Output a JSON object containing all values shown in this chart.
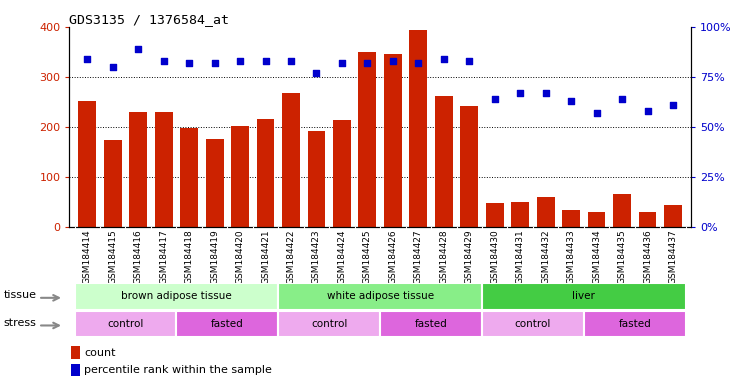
{
  "title": "GDS3135 / 1376584_at",
  "samples": [
    "GSM184414",
    "GSM184415",
    "GSM184416",
    "GSM184417",
    "GSM184418",
    "GSM184419",
    "GSM184420",
    "GSM184421",
    "GSM184422",
    "GSM184423",
    "GSM184424",
    "GSM184425",
    "GSM184426",
    "GSM184427",
    "GSM184428",
    "GSM184429",
    "GSM184430",
    "GSM184431",
    "GSM184432",
    "GSM184433",
    "GSM184434",
    "GSM184435",
    "GSM184436",
    "GSM184437"
  ],
  "counts": [
    251,
    174,
    229,
    229,
    197,
    175,
    201,
    215,
    267,
    191,
    214,
    350,
    346,
    394,
    261,
    241,
    48,
    49,
    60,
    34,
    29,
    66,
    29,
    43
  ],
  "percentile_ranks": [
    84,
    80,
    89,
    83,
    82,
    82,
    83,
    83,
    83,
    77,
    82,
    82,
    83,
    82,
    84,
    83,
    64,
    67,
    67,
    63,
    57,
    64,
    58,
    61
  ],
  "bar_color": "#cc2200",
  "dot_color": "#0000cc",
  "tissue_groups": [
    {
      "label": "brown adipose tissue",
      "start": 0,
      "end": 8,
      "color": "#ccffcc"
    },
    {
      "label": "white adipose tissue",
      "start": 8,
      "end": 16,
      "color": "#88ee88"
    },
    {
      "label": "liver",
      "start": 16,
      "end": 24,
      "color": "#44cc44"
    }
  ],
  "stress_groups": [
    {
      "label": "control",
      "start": 0,
      "end": 4,
      "color": "#eeaaee"
    },
    {
      "label": "fasted",
      "start": 4,
      "end": 8,
      "color": "#dd66dd"
    },
    {
      "label": "control",
      "start": 8,
      "end": 12,
      "color": "#eeaaee"
    },
    {
      "label": "fasted",
      "start": 12,
      "end": 16,
      "color": "#dd66dd"
    },
    {
      "label": "control",
      "start": 16,
      "end": 20,
      "color": "#eeaaee"
    },
    {
      "label": "fasted",
      "start": 20,
      "end": 24,
      "color": "#dd66dd"
    }
  ],
  "ylim_left": [
    0,
    400
  ],
  "ylim_right": [
    0,
    100
  ],
  "yticks_left": [
    0,
    100,
    200,
    300,
    400
  ],
  "yticks_right": [
    0,
    25,
    50,
    75,
    100
  ],
  "ytick_labels_right": [
    "0%",
    "25%",
    "50%",
    "75%",
    "100%"
  ],
  "grid_values": [
    100,
    200,
    300
  ],
  "xtick_bg_color": "#d8d8d8",
  "fig_bg": "#ffffff"
}
